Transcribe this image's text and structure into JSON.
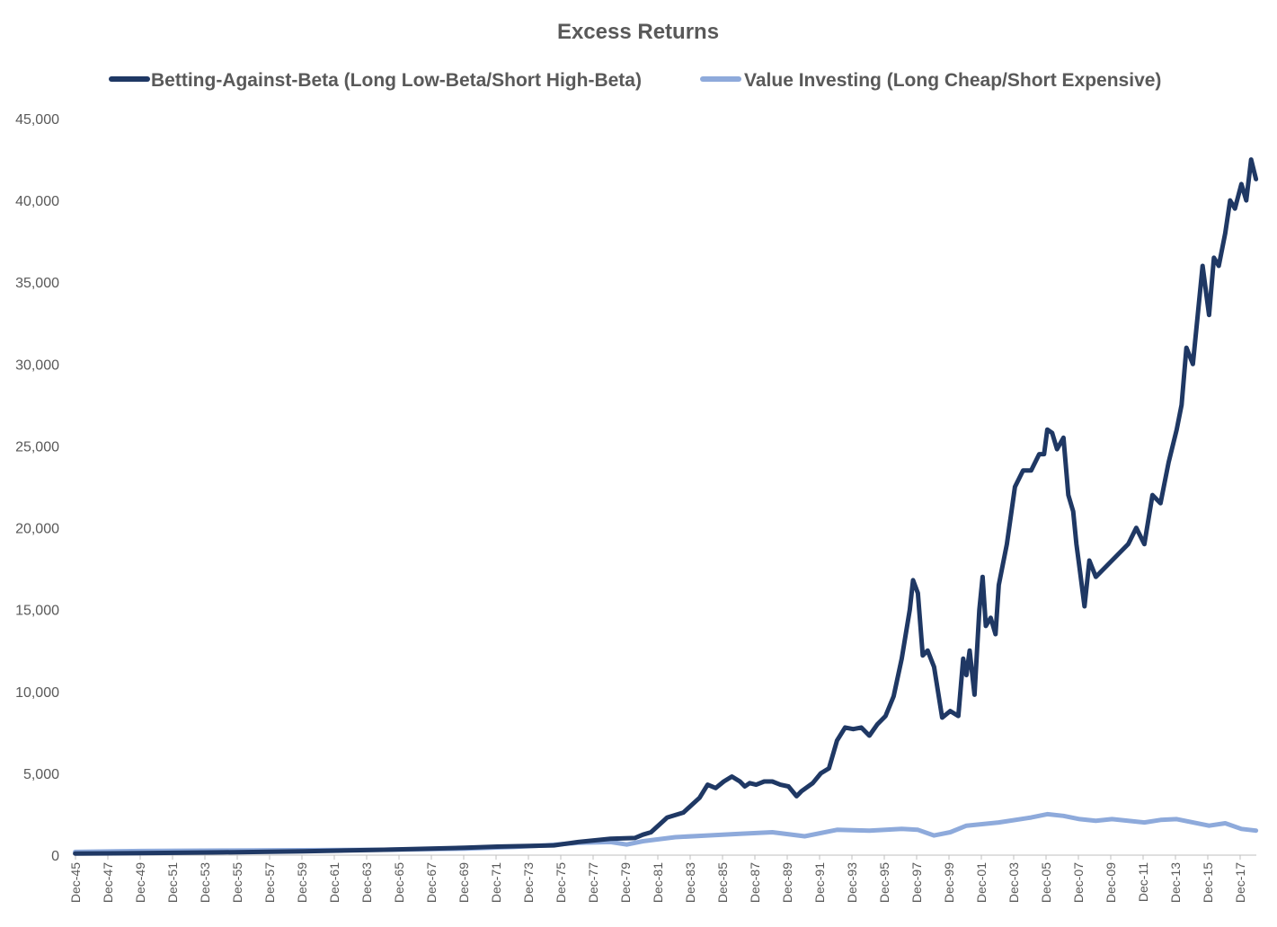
{
  "chart_data": {
    "type": "line",
    "title": "Excess Returns",
    "xlabel": "",
    "ylabel": "",
    "ylim": [
      0,
      45000
    ],
    "y_ticks": [
      0,
      5000,
      10000,
      15000,
      20000,
      25000,
      30000,
      35000,
      40000,
      45000
    ],
    "y_tick_labels": [
      "0",
      "5,000",
      "10,000",
      "15,000",
      "20,000",
      "25,000",
      "30,000",
      "35,000",
      "40,000",
      "45,000"
    ],
    "x_range": [
      1945.92,
      2018.92
    ],
    "x_tick_labels": [
      "Dec-45",
      "Dec-47",
      "Dec-49",
      "Dec-51",
      "Dec-53",
      "Dec-55",
      "Dec-57",
      "Dec-59",
      "Dec-61",
      "Dec-63",
      "Dec-65",
      "Dec-67",
      "Dec-69",
      "Dec-71",
      "Dec-73",
      "Dec-75",
      "Dec-77",
      "Dec-79",
      "Dec-81",
      "Dec-83",
      "Dec-85",
      "Dec-87",
      "Dec-89",
      "Dec-91",
      "Dec-93",
      "Dec-95",
      "Dec-97",
      "Dec-99",
      "Dec-01",
      "Dec-03",
      "Dec-05",
      "Dec-07",
      "Dec-09",
      "Dec-11",
      "Dec-13",
      "Dec-15",
      "Dec-17"
    ],
    "x_tick_values": [
      1945.92,
      1947.92,
      1949.92,
      1951.92,
      1953.92,
      1955.92,
      1957.92,
      1959.92,
      1961.92,
      1963.92,
      1965.92,
      1967.92,
      1969.92,
      1971.92,
      1973.92,
      1975.92,
      1977.92,
      1979.92,
      1981.92,
      1983.92,
      1985.92,
      1987.92,
      1989.92,
      1991.92,
      1993.92,
      1995.92,
      1997.92,
      1999.92,
      2001.92,
      2003.92,
      2005.92,
      2007.92,
      2009.92,
      2011.92,
      2013.92,
      2015.92,
      2017.92
    ],
    "legend_position": "top-center",
    "colors": {
      "bab": "#1f3864",
      "value": "#8eaadb",
      "axis": "#bfbfbf",
      "text": "#595959"
    },
    "series": [
      {
        "name": "Betting-Against-Beta (Long Low-Beta/Short High-Beta)",
        "key": "bab",
        "x": [
          1945.9,
          1950,
          1955,
          1960,
          1965,
          1970,
          1972,
          1974,
          1975.5,
          1977,
          1979,
          1980.5,
          1981,
          1981.5,
          1982.5,
          1983.5,
          1984.5,
          1985,
          1985.5,
          1986,
          1986.5,
          1987,
          1987.3,
          1987.6,
          1988,
          1988.5,
          1989,
          1989.5,
          1990,
          1990.5,
          1990.8,
          1991.5,
          1992,
          1992.5,
          1993,
          1993.5,
          1994,
          1994.5,
          1995,
          1995.5,
          1996,
          1996.5,
          1997,
          1997.5,
          1997.7,
          1998,
          1998.3,
          1998.6,
          1999,
          1999.5,
          2000,
          2000.5,
          2000.8,
          2001,
          2001.2,
          2001.5,
          2001.8,
          2002,
          2002.2,
          2002.5,
          2002.8,
          2003,
          2003.5,
          2004,
          2004.5,
          2005,
          2005.5,
          2005.8,
          2006,
          2006.3,
          2006.6,
          2007,
          2007.3,
          2007.6,
          2007.8,
          2008,
          2008.3,
          2008.6,
          2009,
          2009.5,
          2010,
          2010.5,
          2011,
          2011.5,
          2012,
          2012.5,
          2013,
          2013.5,
          2014,
          2014.3,
          2014.6,
          2015,
          2015.3,
          2015.6,
          2016,
          2016.3,
          2016.6,
          2017,
          2017.3,
          2017.6,
          2018,
          2018.3,
          2018.6,
          2018.9
        ],
        "y": [
          100,
          120,
          170,
          230,
          330,
          450,
          520,
          560,
          600,
          800,
          1000,
          1050,
          1250,
          1400,
          2300,
          2600,
          3500,
          4300,
          4100,
          4500,
          4800,
          4500,
          4200,
          4400,
          4300,
          4500,
          4500,
          4300,
          4200,
          3600,
          3900,
          4400,
          5000,
          5300,
          7000,
          7800,
          7700,
          7800,
          7300,
          8000,
          8500,
          9700,
          12000,
          15000,
          16800,
          16000,
          12200,
          12500,
          11500,
          8400,
          8800,
          8500,
          12000,
          11000,
          12500,
          9800,
          15000,
          17000,
          14000,
          14500,
          13500,
          16500,
          19000,
          22500,
          23500,
          23500,
          24500,
          24500,
          26000,
          25800,
          24800,
          25500,
          22000,
          21000,
          19000,
          17500,
          15200,
          18000,
          17000,
          17500,
          18000,
          18500,
          19000,
          20000,
          19000,
          22000,
          21500,
          24000,
          26000,
          27500,
          31000,
          30000,
          33000,
          36000,
          33000,
          36500,
          36000,
          38000,
          40000,
          39500,
          41000,
          40000,
          42500,
          41300
        ]
      },
      {
        "name": "Value Investing (Long Cheap/Short Expensive)",
        "key": "value",
        "x": [
          1945.9,
          1950,
          1955,
          1960,
          1965,
          1970,
          1973,
          1975,
          1977,
          1979,
          1980,
          1981,
          1983,
          1985,
          1987,
          1989,
          1991,
          1993,
          1995,
          1997,
          1998,
          1999,
          2000,
          2001,
          2003,
          2005,
          2006,
          2007,
          2008,
          2009,
          2010,
          2012,
          2013,
          2014,
          2015,
          2016,
          2017,
          2018,
          2018.9
        ],
        "y": [
          200,
          250,
          280,
          300,
          330,
          400,
          500,
          600,
          750,
          800,
          650,
          850,
          1100,
          1200,
          1300,
          1400,
          1150,
          1550,
          1500,
          1600,
          1550,
          1200,
          1400,
          1800,
          2000,
          2300,
          2500,
          2400,
          2200,
          2100,
          2200,
          2000,
          2150,
          2200,
          2000,
          1800,
          1950,
          1600,
          1500
        ]
      }
    ]
  }
}
